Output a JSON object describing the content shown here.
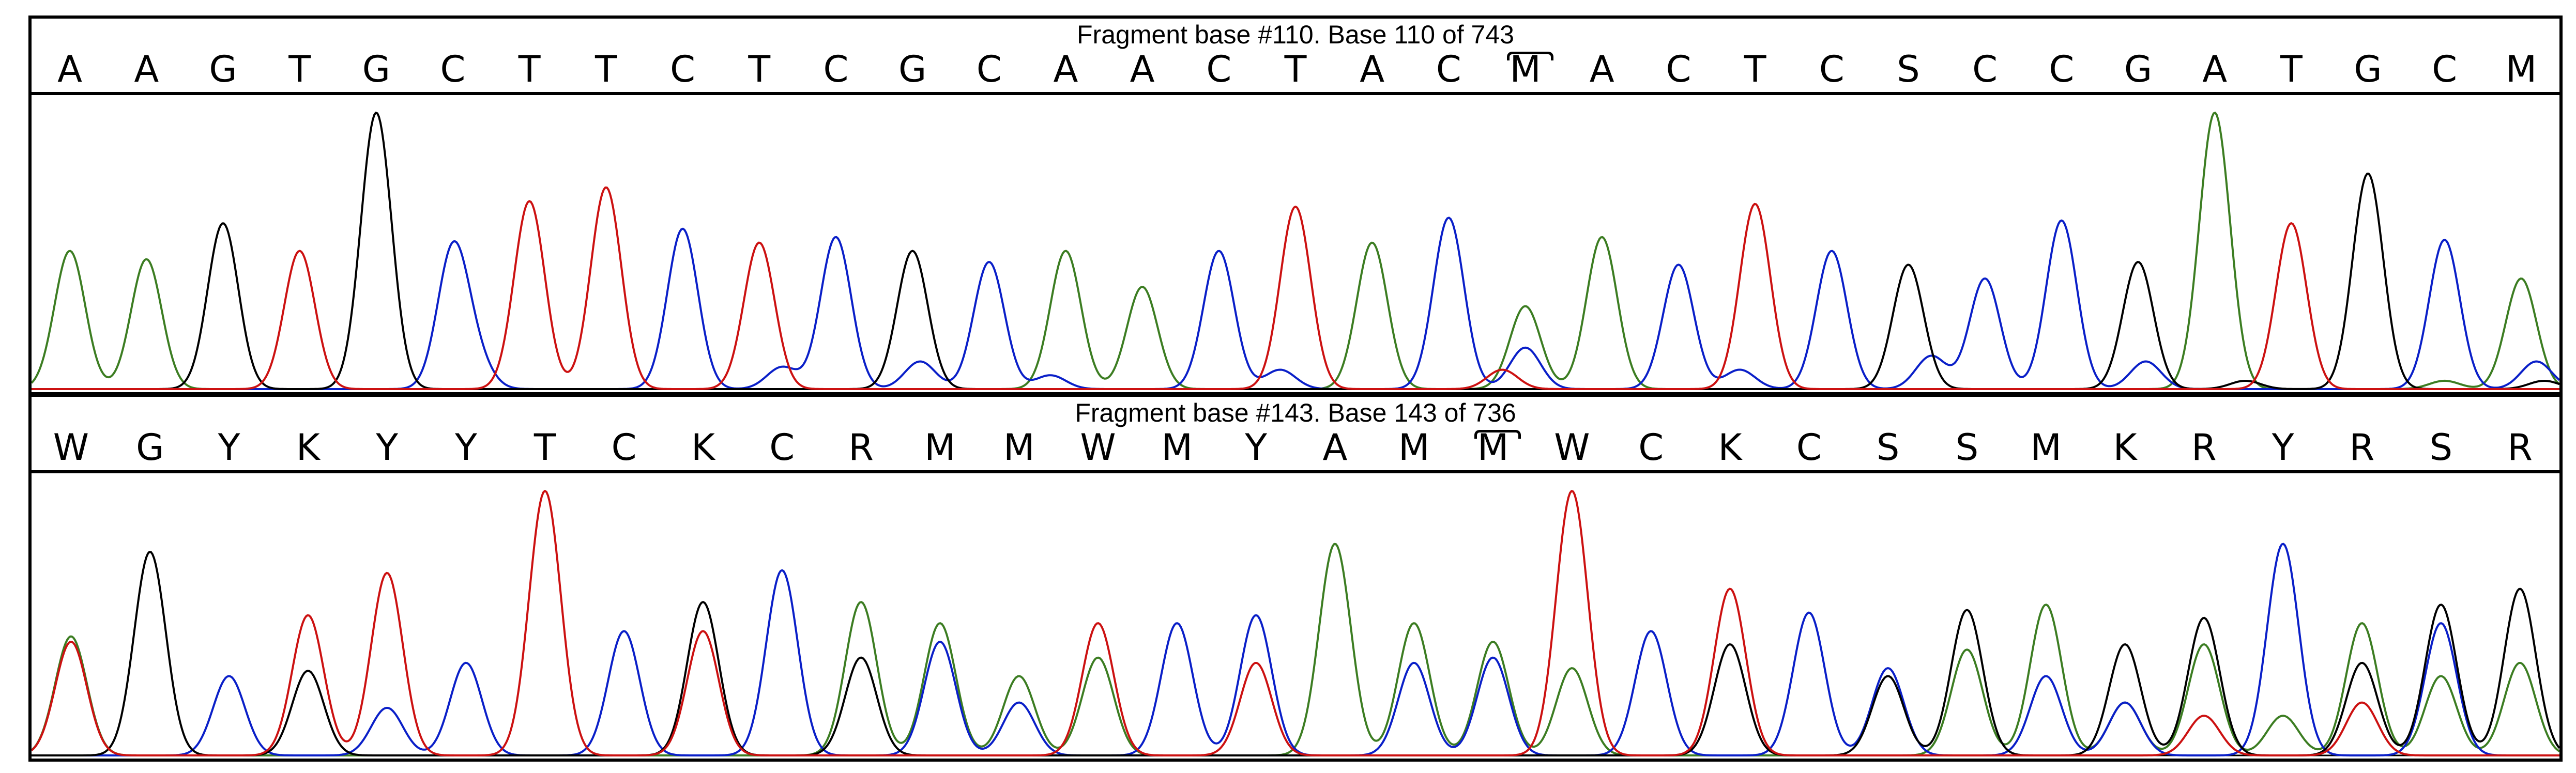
{
  "colors": {
    "A": "#3c7d22",
    "C": "#0a1fc8",
    "G": "#000000",
    "T": "#cc1111"
  },
  "panels": [
    {
      "title": "Fragment base #110. Base 110 of 743",
      "bases": [
        "A",
        "A",
        "G",
        "T",
        "G",
        "C",
        "T",
        "T",
        "C",
        "T",
        "C",
        "G",
        "C",
        "A",
        "A",
        "C",
        "T",
        "A",
        "C",
        "M",
        "A",
        "C",
        "T",
        "C",
        "S",
        "C",
        "C",
        "G",
        "A",
        "T",
        "G",
        "C",
        "M"
      ],
      "marked_index": 19
    },
    {
      "title": "Fragment base #143. Base 143 of 736",
      "bases": [
        "W",
        "G",
        "Y",
        "K",
        "Y",
        "Y",
        "T",
        "C",
        "K",
        "C",
        "R",
        "M",
        "M",
        "W",
        "M",
        "Y",
        "A",
        "M",
        "M",
        "W",
        "C",
        "K",
        "C",
        "S",
        "S",
        "M",
        "K",
        "R",
        "Y",
        "R",
        "S",
        "R"
      ],
      "marked_index": 18
    }
  ],
  "chart_data": [
    {
      "type": "line",
      "title": "Fragment base #110. Base 110 of 743",
      "xlabel": "",
      "ylabel": "",
      "base_calls": [
        "A",
        "A",
        "G",
        "T",
        "G",
        "C",
        "T",
        "T",
        "C",
        "T",
        "C",
        "G",
        "C",
        "A",
        "A",
        "C",
        "T",
        "A",
        "C",
        "M",
        "A",
        "C",
        "T",
        "C",
        "S",
        "C",
        "C",
        "G",
        "A",
        "T",
        "G",
        "C",
        "M"
      ],
      "series": [
        {
          "name": "A",
          "peaks": [
            [
              0.5,
              0.5
            ],
            [
              1.5,
              0.47
            ],
            [
              13.5,
              0.5
            ],
            [
              14.5,
              0.37
            ],
            [
              17.5,
              0.53
            ],
            [
              19.5,
              0.3
            ],
            [
              20.5,
              0.55
            ],
            [
              28.5,
              1.0
            ],
            [
              31.5,
              0.03
            ],
            [
              32.5,
              0.4
            ]
          ]
        },
        {
          "name": "C",
          "peaks": [
            [
              5.5,
              0.5
            ],
            [
              5.8,
              0.1
            ],
            [
              8.5,
              0.58
            ],
            [
              9.8,
              0.08
            ],
            [
              10.5,
              0.55
            ],
            [
              11.6,
              0.1
            ],
            [
              12.5,
              0.46
            ],
            [
              13.3,
              0.05
            ],
            [
              15.5,
              0.5
            ],
            [
              16.3,
              0.07
            ],
            [
              18.5,
              0.62
            ],
            [
              19.5,
              0.15
            ],
            [
              21.5,
              0.45
            ],
            [
              22.3,
              0.07
            ],
            [
              23.5,
              0.5
            ],
            [
              24.8,
              0.12
            ],
            [
              25.5,
              0.4
            ],
            [
              26.5,
              0.61
            ],
            [
              27.6,
              0.1
            ],
            [
              31.5,
              0.54
            ],
            [
              32.7,
              0.1
            ]
          ]
        },
        {
          "name": "G",
          "peaks": [
            [
              2.5,
              0.6
            ],
            [
              4.5,
              1.0
            ],
            [
              11.5,
              0.5
            ],
            [
              24.5,
              0.45
            ],
            [
              27.5,
              0.46
            ],
            [
              28.9,
              0.03
            ],
            [
              30.5,
              0.78
            ],
            [
              32.8,
              0.03
            ]
          ]
        },
        {
          "name": "T",
          "peaks": [
            [
              3.5,
              0.5
            ],
            [
              6.5,
              0.68
            ],
            [
              7.5,
              0.73
            ],
            [
              9.5,
              0.53
            ],
            [
              16.5,
              0.66
            ],
            [
              19.2,
              0.07
            ],
            [
              22.5,
              0.67
            ],
            [
              29.5,
              0.6
            ]
          ]
        }
      ]
    },
    {
      "type": "line",
      "title": "Fragment base #143. Base 143 of 736",
      "xlabel": "",
      "ylabel": "",
      "base_calls": [
        "W",
        "G",
        "Y",
        "K",
        "Y",
        "Y",
        "T",
        "C",
        "K",
        "C",
        "R",
        "M",
        "M",
        "W",
        "M",
        "Y",
        "A",
        "M",
        "M",
        "W",
        "C",
        "K",
        "C",
        "S",
        "S",
        "M",
        "K",
        "R",
        "Y",
        "R",
        "S",
        "R"
      ],
      "series": [
        {
          "name": "A",
          "peaks": [
            [
              0.5,
              0.45
            ],
            [
              10.5,
              0.58
            ],
            [
              11.5,
              0.5
            ],
            [
              12.5,
              0.3
            ],
            [
              13.5,
              0.37
            ],
            [
              16.5,
              0.8
            ],
            [
              17.5,
              0.5
            ],
            [
              18.5,
              0.43
            ],
            [
              19.5,
              0.33
            ],
            [
              24.5,
              0.4
            ],
            [
              25.5,
              0.57
            ],
            [
              26.5,
              0.2
            ],
            [
              27.5,
              0.42
            ],
            [
              28.5,
              0.15
            ],
            [
              29.5,
              0.5
            ],
            [
              30.5,
              0.3
            ],
            [
              31.5,
              0.35
            ]
          ]
        },
        {
          "name": "C",
          "peaks": [
            [
              2.5,
              0.3
            ],
            [
              4.5,
              0.18
            ],
            [
              5.5,
              0.35
            ],
            [
              7.5,
              0.47
            ],
            [
              9.5,
              0.7
            ],
            [
              11.5,
              0.43
            ],
            [
              12.5,
              0.2
            ],
            [
              14.5,
              0.5
            ],
            [
              15.5,
              0.53
            ],
            [
              17.5,
              0.35
            ],
            [
              18.5,
              0.37
            ],
            [
              20.5,
              0.47
            ],
            [
              22.5,
              0.54
            ],
            [
              23.5,
              0.33
            ],
            [
              25.5,
              0.3
            ],
            [
              26.5,
              0.2
            ],
            [
              28.5,
              0.8
            ],
            [
              30.5,
              0.5
            ]
          ]
        },
        {
          "name": "G",
          "peaks": [
            [
              1.5,
              0.77
            ],
            [
              3.5,
              0.32
            ],
            [
              8.5,
              0.58
            ],
            [
              10.5,
              0.37
            ],
            [
              21.5,
              0.42
            ],
            [
              23.5,
              0.3
            ],
            [
              24.5,
              0.55
            ],
            [
              26.5,
              0.42
            ],
            [
              27.5,
              0.52
            ],
            [
              29.5,
              0.35
            ],
            [
              30.5,
              0.57
            ],
            [
              31.5,
              0.63
            ]
          ]
        },
        {
          "name": "T",
          "peaks": [
            [
              0.5,
              0.43
            ],
            [
              3.5,
              0.53
            ],
            [
              4.5,
              0.69
            ],
            [
              6.5,
              1.0
            ],
            [
              8.5,
              0.47
            ],
            [
              13.5,
              0.5
            ],
            [
              15.5,
              0.35
            ],
            [
              19.5,
              1.0
            ],
            [
              21.5,
              0.63
            ],
            [
              27.5,
              0.15
            ],
            [
              29.5,
              0.2
            ]
          ]
        }
      ]
    }
  ]
}
